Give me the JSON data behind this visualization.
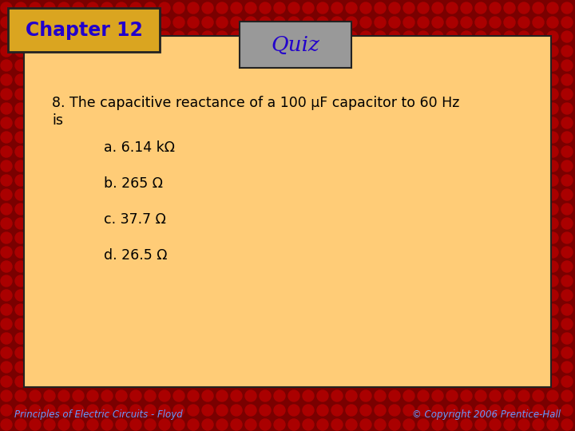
{
  "bg_color": "#7A0000",
  "panel_color": "#FFCC77",
  "panel_border_color": "#222222",
  "chapter_box_color": "#DAA520",
  "chapter_box_border": "#222222",
  "chapter_text": "Chapter 12",
  "chapter_text_color": "#2200CC",
  "quiz_box_color": "#999999",
  "quiz_box_border": "#222222",
  "quiz_text": "Quiz",
  "quiz_text_color": "#2200CC",
  "question_line1": "8. The capacitive reactance of a 100 μF capacitor to 60 Hz",
  "question_line2": "is",
  "question_color": "#000000",
  "answers": [
    "a. 6.14 kΩ",
    "b. 265 Ω",
    "c. 37.7 Ω",
    "d. 26.5 Ω"
  ],
  "answer_color": "#000000",
  "footer_left": "Principles of Electric Circuits - Floyd",
  "footer_right": "© Copyright 2006 Prentice-Hall",
  "footer_color": "#6699FF"
}
